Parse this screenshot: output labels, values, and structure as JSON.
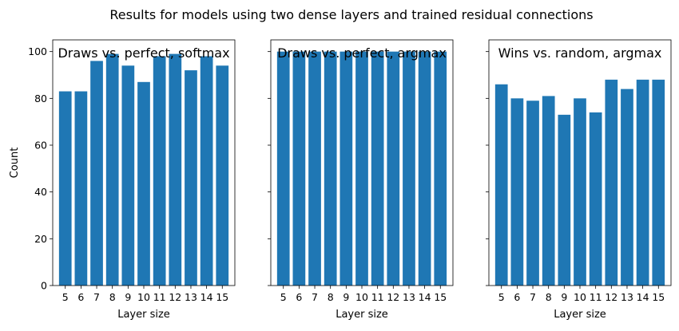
{
  "figure": {
    "suptitle": "Results for models using two dense layers and trained residual connections",
    "bar_color": "#1f77b4"
  },
  "chart_data": [
    {
      "type": "bar",
      "title": "Draws vs. perfect, softmax",
      "xlabel": "Layer size",
      "ylabel": "Count",
      "categories": [
        "5",
        "6",
        "7",
        "8",
        "9",
        "10",
        "11",
        "12",
        "13",
        "14",
        "15"
      ],
      "values": [
        83,
        83,
        96,
        99,
        94,
        87,
        98,
        99,
        92,
        98,
        94
      ],
      "ylim": [
        0,
        105
      ],
      "yticks": [
        0,
        20,
        40,
        60,
        80,
        100
      ],
      "ytick_labels": [
        "0",
        "20",
        "40",
        "60",
        "80",
        "100"
      ]
    },
    {
      "type": "bar",
      "title": "Draws vs. perfect, argmax",
      "xlabel": "Layer size",
      "ylabel": "",
      "categories": [
        "5",
        "6",
        "7",
        "8",
        "9",
        "10",
        "11",
        "12",
        "13",
        "14",
        "15"
      ],
      "values": [
        100,
        100,
        100,
        100,
        100,
        100,
        100,
        100,
        100,
        100,
        100
      ],
      "ylim": [
        0,
        105
      ],
      "yticks": [
        0,
        20,
        40,
        60,
        80,
        100
      ],
      "ytick_labels": []
    },
    {
      "type": "bar",
      "title": "Wins vs. random, argmax",
      "xlabel": "Layer size",
      "ylabel": "",
      "categories": [
        "5",
        "6",
        "7",
        "8",
        "9",
        "10",
        "11",
        "12",
        "13",
        "14",
        "15"
      ],
      "values": [
        86,
        80,
        79,
        81,
        73,
        80,
        74,
        88,
        84,
        88,
        88
      ],
      "ylim": [
        0,
        105
      ],
      "yticks": [
        0,
        20,
        40,
        60,
        80,
        100
      ],
      "ytick_labels": []
    }
  ]
}
